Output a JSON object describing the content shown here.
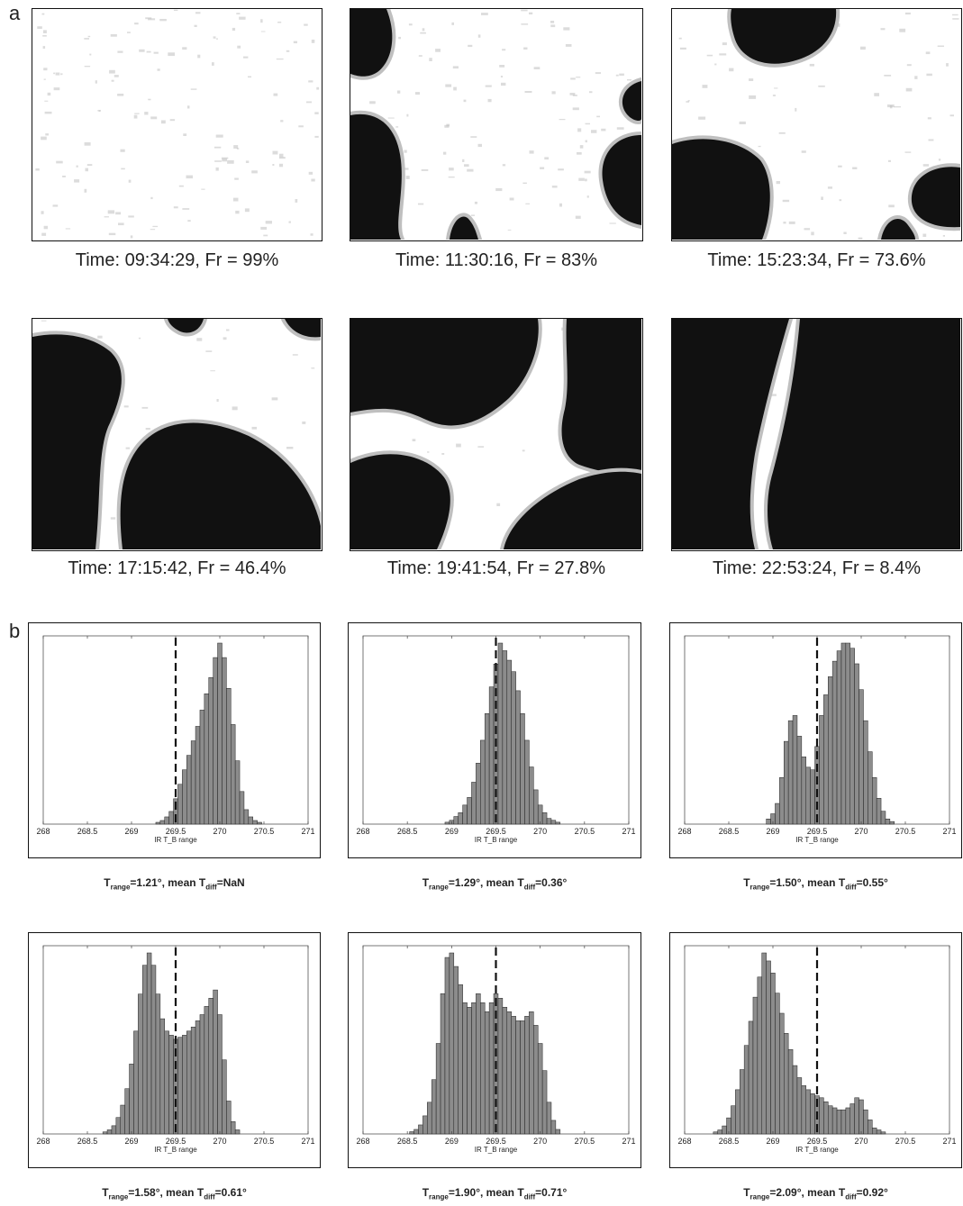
{
  "panel_a": {
    "label": "a",
    "maps": [
      {
        "time": "09:34:29",
        "fr": "99%",
        "caption": "Time: 09:34:29, Fr = 99%",
        "fraction": 0.99
      },
      {
        "time": "11:30:16",
        "fr": "83%",
        "caption": "Time: 11:30:16, Fr = 83%",
        "fraction": 0.83
      },
      {
        "time": "15:23:34",
        "fr": "73.6%",
        "caption": "Time: 15:23:34, Fr = 73.6%",
        "fraction": 0.736
      },
      {
        "time": "17:15:42",
        "fr": "46.4%",
        "caption": "Time: 17:15:42, Fr = 46.4%",
        "fraction": 0.464
      },
      {
        "time": "19:41:54",
        "fr": "27.8%",
        "caption": "Time: 19:41:54, Fr = 27.8%",
        "fraction": 0.278
      },
      {
        "time": "22:53:24",
        "fr": "8.4%",
        "caption": "Time: 22:53:24, Fr = 8.4%",
        "fraction": 0.084
      }
    ]
  },
  "panel_b": {
    "label": "b",
    "xlabel": "IR T_B range",
    "caption_parts": {
      "t": "T",
      "range_sub": "range",
      "mean": ", mean T",
      "diff_sub": "diff"
    }
  },
  "chart_data": [
    {
      "type": "bar",
      "xlabel": "IR T_B range",
      "xlim": [
        268,
        271
      ],
      "xticks": [
        268,
        268.5,
        269,
        269.5,
        270,
        270.5,
        271
      ],
      "threshold": 269.5,
      "t_range": "1.21°",
      "mean_t_diff": "NaN",
      "bins": [
        269.3,
        269.35,
        269.4,
        269.45,
        269.5,
        269.55,
        269.6,
        269.65,
        269.7,
        269.75,
        269.8,
        269.85,
        269.9,
        269.95,
        270.0,
        270.05,
        270.1,
        270.15,
        270.2,
        270.25,
        270.3,
        270.35,
        270.4,
        270.45
      ],
      "values": [
        1,
        2,
        4,
        7,
        14,
        22,
        30,
        38,
        46,
        54,
        63,
        72,
        81,
        92,
        100,
        92,
        75,
        55,
        35,
        18,
        8,
        4,
        2,
        1
      ]
    },
    {
      "type": "bar",
      "xlabel": "IR T_B range",
      "xlim": [
        268,
        271
      ],
      "xticks": [
        268,
        268.5,
        269,
        269.5,
        270,
        270.5,
        271
      ],
      "threshold": 269.5,
      "t_range": "1.29°",
      "mean_t_diff": "0.36°",
      "bins": [
        268.95,
        269.0,
        269.05,
        269.1,
        269.15,
        269.2,
        269.25,
        269.3,
        269.35,
        269.4,
        269.45,
        269.5,
        269.55,
        269.6,
        269.65,
        269.7,
        269.75,
        269.8,
        269.85,
        269.9,
        269.95,
        270.0,
        270.05,
        270.1,
        270.15,
        270.2
      ],
      "values": [
        1,
        2,
        4,
        6,
        10,
        14,
        22,
        32,
        44,
        58,
        72,
        84,
        95,
        91,
        86,
        80,
        70,
        58,
        44,
        30,
        18,
        10,
        6,
        3,
        2,
        1
      ]
    },
    {
      "type": "bar",
      "xlabel": "IR T_B range",
      "xlim": [
        268,
        271
      ],
      "xticks": [
        268,
        268.5,
        269,
        269.5,
        270,
        270.5,
        271
      ],
      "threshold": 269.5,
      "t_range": "1.50°",
      "mean_t_diff": "0.55°",
      "bins": [
        268.95,
        269.0,
        269.05,
        269.1,
        269.15,
        269.2,
        269.25,
        269.3,
        269.35,
        269.4,
        269.45,
        269.5,
        269.55,
        269.6,
        269.65,
        269.7,
        269.75,
        269.8,
        269.85,
        269.9,
        269.95,
        270.0,
        270.05,
        270.1,
        270.15,
        270.2,
        270.25,
        270.3,
        270.35
      ],
      "values": [
        2,
        4,
        8,
        18,
        32,
        40,
        42,
        34,
        26,
        22,
        21,
        30,
        42,
        50,
        57,
        63,
        67,
        70,
        70,
        68,
        62,
        52,
        40,
        28,
        18,
        10,
        5,
        2,
        1
      ]
    },
    {
      "type": "bar",
      "xlabel": "IR T_B range",
      "xlim": [
        268,
        271
      ],
      "xticks": [
        268,
        268.5,
        269,
        269.5,
        270,
        270.5,
        271
      ],
      "threshold": 269.5,
      "t_range": "1.58°",
      "mean_t_diff": "0.61°",
      "bins": [
        268.7,
        268.75,
        268.8,
        268.85,
        268.9,
        268.95,
        269.0,
        269.05,
        269.1,
        269.15,
        269.2,
        269.25,
        269.3,
        269.35,
        269.4,
        269.45,
        269.5,
        269.55,
        269.6,
        269.65,
        269.7,
        269.75,
        269.8,
        269.85,
        269.9,
        269.95,
        270.0,
        270.05,
        270.1,
        270.15,
        270.2
      ],
      "values": [
        1,
        2,
        4,
        8,
        14,
        22,
        34,
        50,
        68,
        82,
        88,
        82,
        68,
        56,
        50,
        48,
        46,
        47,
        48,
        50,
        52,
        55,
        58,
        62,
        66,
        70,
        58,
        36,
        16,
        6,
        2
      ]
    },
    {
      "type": "bar",
      "xlabel": "IR T_B range",
      "xlim": [
        268,
        271
      ],
      "xticks": [
        268,
        268.5,
        269,
        269.5,
        270,
        270.5,
        271
      ],
      "threshold": 269.5,
      "t_range": "1.90°",
      "mean_t_diff": "0.71°",
      "bins": [
        268.55,
        268.6,
        268.65,
        268.7,
        268.75,
        268.8,
        268.85,
        268.9,
        268.95,
        269.0,
        269.05,
        269.1,
        269.15,
        269.2,
        269.25,
        269.3,
        269.35,
        269.4,
        269.45,
        269.5,
        269.55,
        269.6,
        269.65,
        269.7,
        269.75,
        269.8,
        269.85,
        269.9,
        269.95,
        270.0,
        270.05,
        270.1,
        270.15,
        270.2
      ],
      "values": [
        1,
        2,
        4,
        8,
        14,
        24,
        40,
        62,
        78,
        80,
        74,
        66,
        58,
        56,
        58,
        62,
        58,
        54,
        58,
        62,
        60,
        56,
        54,
        52,
        50,
        50,
        52,
        54,
        48,
        40,
        28,
        14,
        6,
        2
      ]
    },
    {
      "type": "bar",
      "xlabel": "IR T_B range",
      "xlim": [
        268,
        271
      ],
      "xticks": [
        268,
        268.5,
        269,
        269.5,
        270,
        270.5,
        271
      ],
      "threshold": 269.5,
      "t_range": "2.09°",
      "mean_t_diff": "0.92°",
      "bins": [
        268.35,
        268.4,
        268.45,
        268.5,
        268.55,
        268.6,
        268.65,
        268.7,
        268.75,
        268.8,
        268.85,
        268.9,
        268.95,
        269.0,
        269.05,
        269.1,
        269.15,
        269.2,
        269.25,
        269.3,
        269.35,
        269.4,
        269.45,
        269.5,
        269.55,
        269.6,
        269.65,
        269.7,
        269.75,
        269.8,
        269.85,
        269.9,
        269.95,
        270.0,
        270.05,
        270.1,
        270.15,
        270.2,
        270.25
      ],
      "values": [
        1,
        2,
        4,
        8,
        14,
        22,
        32,
        44,
        56,
        68,
        78,
        90,
        86,
        80,
        70,
        60,
        50,
        42,
        34,
        28,
        24,
        22,
        20,
        19,
        18,
        16,
        14,
        13,
        12,
        12,
        13,
        15,
        18,
        17,
        12,
        7,
        3,
        2,
        1
      ]
    }
  ],
  "colors": {
    "cloud": "#111111",
    "clear": "#ffffff",
    "edge": "#bfbfbf",
    "bar_fill": "#8c8c8c",
    "bar_stroke": "#222222"
  }
}
